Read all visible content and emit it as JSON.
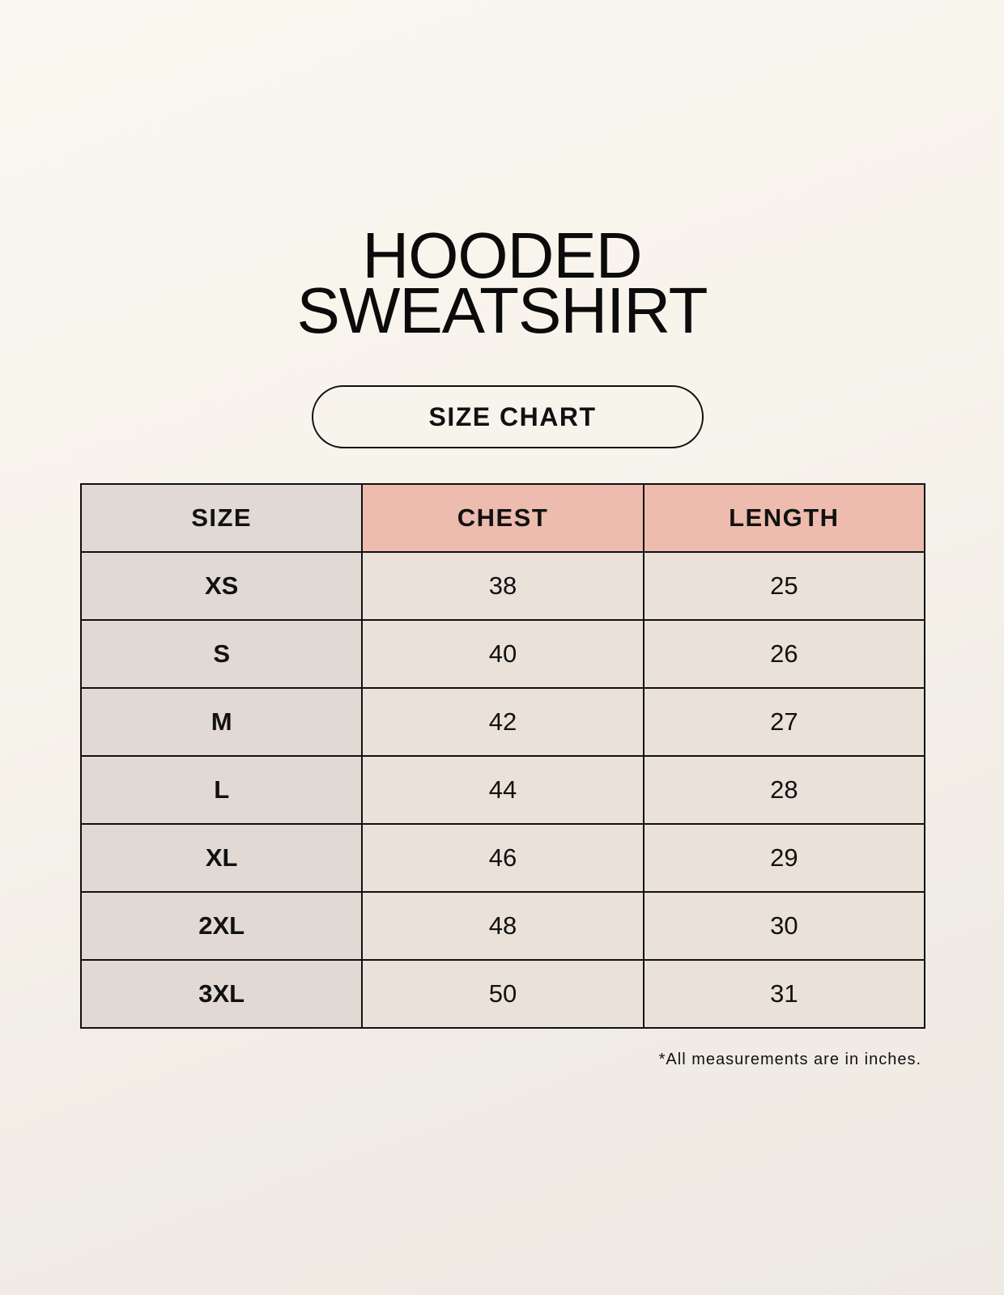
{
  "title": {
    "line1": "HOODED",
    "line2": "SWEATSHIRT"
  },
  "subtitle": "SIZE CHART",
  "table": {
    "headers": [
      "SIZE",
      "CHEST",
      "LENGTH"
    ],
    "rows": [
      [
        "XS",
        "38",
        "25"
      ],
      [
        "S",
        "40",
        "26"
      ],
      [
        "M",
        "42",
        "27"
      ],
      [
        "L",
        "44",
        "28"
      ],
      [
        "XL",
        "46",
        "29"
      ],
      [
        "2XL",
        "48",
        "30"
      ],
      [
        "3XL",
        "50",
        "31"
      ]
    ]
  },
  "footnote": "*All measurements are in inches.",
  "colors": {
    "size_column": "#e0d9d4",
    "header_accent": "#edbcae",
    "cell": "#eae2d8"
  }
}
